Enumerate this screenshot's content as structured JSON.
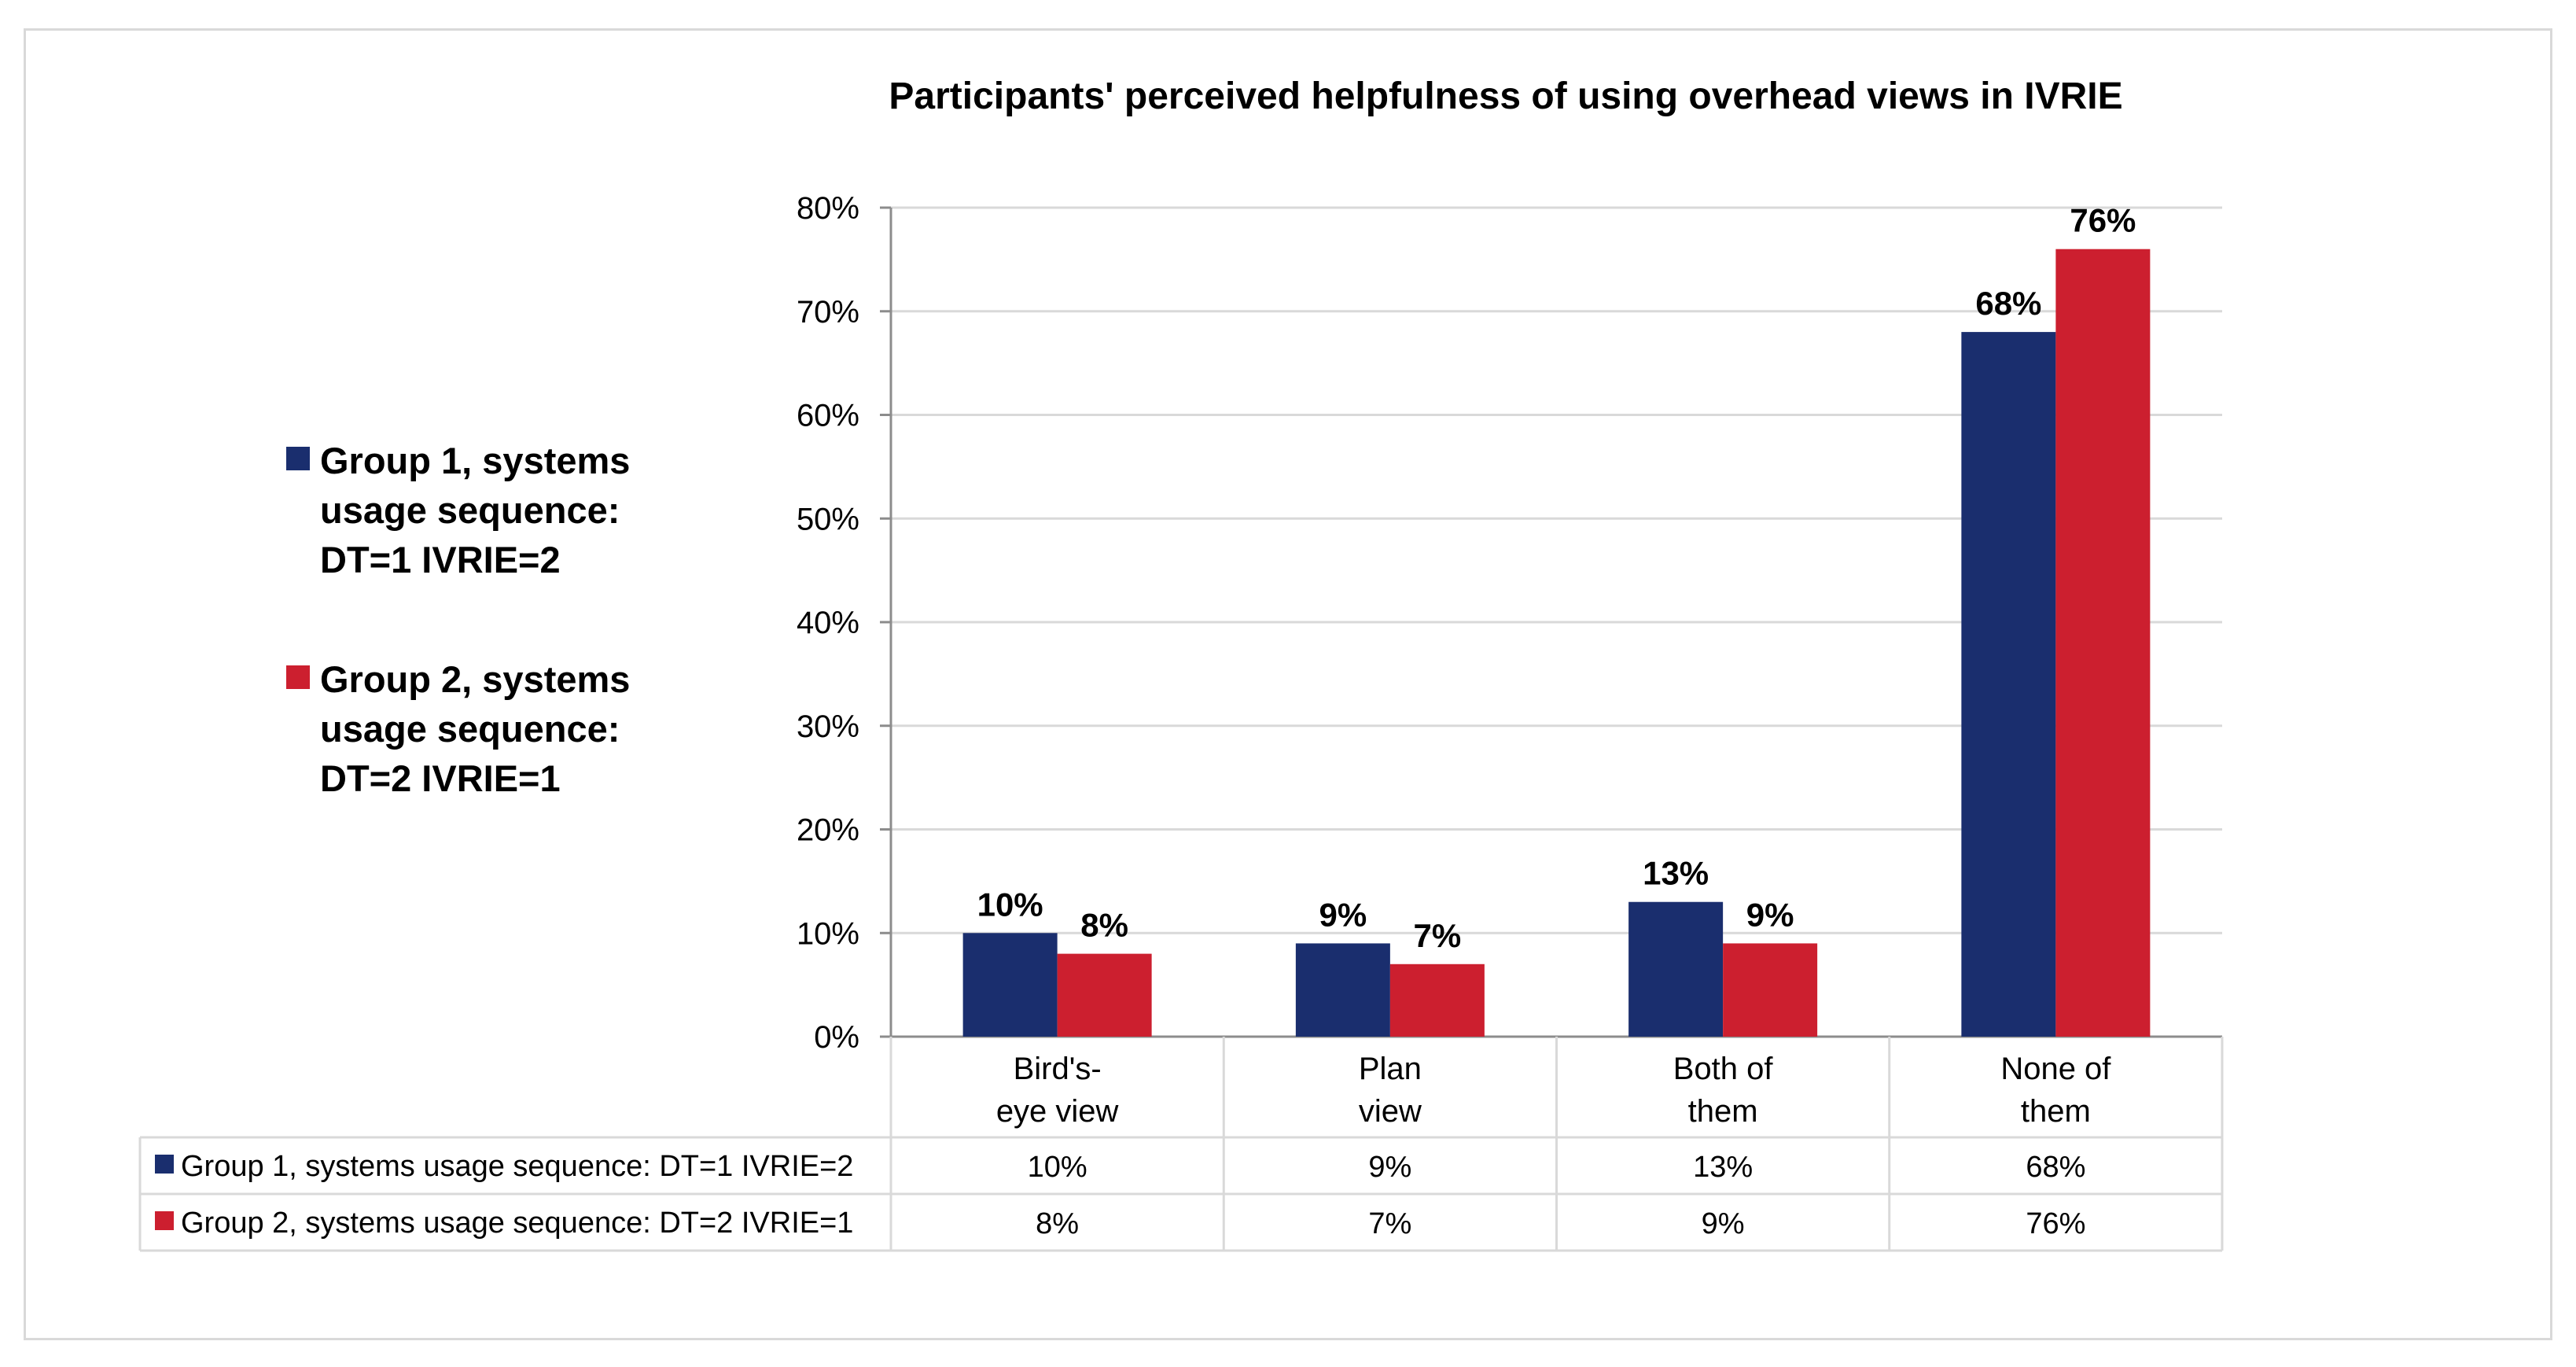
{
  "chart_data": {
    "type": "bar",
    "title": "Participants' perceived helpfulness of using overhead views in IVRIE",
    "categories": [
      [
        "Bird's-",
        "eye view"
      ],
      [
        "Plan",
        "view"
      ],
      [
        "Both of",
        "them"
      ],
      [
        "None of",
        "them"
      ]
    ],
    "series": [
      {
        "name": "Group 1, systems usage sequence: DT=1 IVRIE=2",
        "legend_lines": [
          "Group 1, systems",
          "usage sequence:",
          "DT=1 IVRIE=2"
        ],
        "color": "#1a2e6e",
        "values": [
          10,
          9,
          13,
          68
        ],
        "labels": [
          "10%",
          "9%",
          "13%",
          "68%"
        ]
      },
      {
        "name": "Group 2, systems usage sequence: DT=2 IVRIE=1",
        "legend_lines": [
          "Group 2, systems",
          "usage sequence:",
          "DT=2 IVRIE=1"
        ],
        "color": "#cc1f2f",
        "values": [
          8,
          7,
          9,
          76
        ],
        "labels": [
          "8%",
          "7%",
          "9%",
          "76%"
        ]
      }
    ],
    "yticks": [
      "0%",
      "10%",
      "20%",
      "30%",
      "40%",
      "50%",
      "60%",
      "70%",
      "80%"
    ],
    "ylim": [
      0,
      80
    ],
    "xlabel": "",
    "ylabel": "",
    "grid": true,
    "legend": "left",
    "data_table": true
  }
}
